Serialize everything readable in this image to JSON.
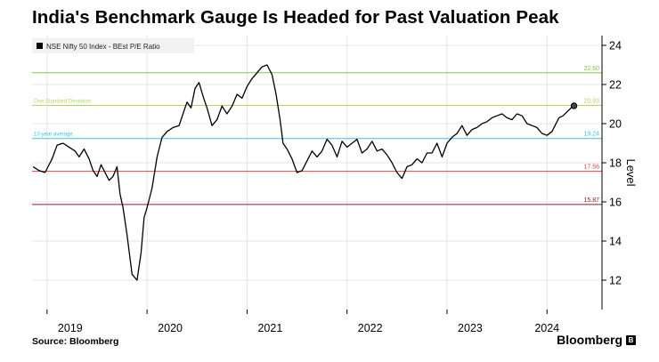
{
  "title": "India's Benchmark Gauge Is Headed for Past Valuation Peak",
  "source": "Source: Bloomberg",
  "brand": "Bloomberg",
  "chart_data": {
    "type": "line",
    "ylabel": "Level",
    "ylim": [
      10.5,
      24.5
    ],
    "yticks": [
      12,
      14,
      16,
      18,
      20,
      22,
      24
    ],
    "xlim": [
      2018.85,
      2024.55
    ],
    "xticks": [
      {
        "label": "2019",
        "x": 2019.0
      },
      {
        "label": "2020",
        "x": 2020.0
      },
      {
        "label": "2021",
        "x": 2021.0
      },
      {
        "label": "2022",
        "x": 2022.0
      },
      {
        "label": "2023",
        "x": 2023.0
      },
      {
        "label": "2024",
        "x": 2024.0
      }
    ],
    "grid": true,
    "legend": {
      "position": "top-left"
    },
    "series": [
      {
        "name": "NSE Nifty 50 Index - BEst P/E Ratio",
        "color": "#000000",
        "x": [
          2018.86,
          2018.92,
          2018.98,
          2019.05,
          2019.1,
          2019.16,
          2019.22,
          2019.28,
          2019.32,
          2019.37,
          2019.42,
          2019.46,
          2019.5,
          2019.54,
          2019.58,
          2019.62,
          2019.66,
          2019.7,
          2019.73,
          2019.76,
          2019.8,
          2019.85,
          2019.9,
          2019.94,
          2019.97,
          2020.0,
          2020.05,
          2020.1,
          2020.15,
          2020.2,
          2020.26,
          2020.32,
          2020.36,
          2020.4,
          2020.44,
          2020.48,
          2020.52,
          2020.56,
          2020.6,
          2020.65,
          2020.7,
          2020.75,
          2020.8,
          2020.85,
          2020.9,
          2020.95,
          2021.0,
          2021.05,
          2021.1,
          2021.15,
          2021.2,
          2021.25,
          2021.29,
          2021.33,
          2021.36,
          2021.4,
          2021.45,
          2021.5,
          2021.55,
          2021.6,
          2021.65,
          2021.7,
          2021.75,
          2021.8,
          2021.85,
          2021.9,
          2021.95,
          2022.0,
          2022.05,
          2022.1,
          2022.15,
          2022.2,
          2022.25,
          2022.3,
          2022.35,
          2022.4,
          2022.45,
          2022.5,
          2022.55,
          2022.6,
          2022.65,
          2022.7,
          2022.75,
          2022.8,
          2022.85,
          2022.9,
          2022.95,
          2023.0,
          2023.05,
          2023.1,
          2023.15,
          2023.2,
          2023.25,
          2023.3,
          2023.35,
          2023.4,
          2023.45,
          2023.5,
          2023.55,
          2023.6,
          2023.65,
          2023.7,
          2023.75,
          2023.8,
          2023.85,
          2023.9,
          2023.95,
          2024.0,
          2024.05,
          2024.08,
          2024.12,
          2024.16,
          2024.2,
          2024.24,
          2024.27
        ],
        "values": [
          17.8,
          17.6,
          17.5,
          18.2,
          18.9,
          19.0,
          18.8,
          18.6,
          18.3,
          18.7,
          18.2,
          17.6,
          17.3,
          17.9,
          17.5,
          17.1,
          17.3,
          17.8,
          16.4,
          15.7,
          14.3,
          12.3,
          12.0,
          13.4,
          15.2,
          15.7,
          16.7,
          18.3,
          19.3,
          19.6,
          19.8,
          19.9,
          20.5,
          21.1,
          20.8,
          21.8,
          22.1,
          21.4,
          20.8,
          19.9,
          20.2,
          20.9,
          20.5,
          20.9,
          21.5,
          21.3,
          21.9,
          22.3,
          22.6,
          22.9,
          23.0,
          22.5,
          21.5,
          20.2,
          19.0,
          18.7,
          18.2,
          17.5,
          17.6,
          18.1,
          18.6,
          18.3,
          18.6,
          19.2,
          18.9,
          18.3,
          19.1,
          18.8,
          19.0,
          19.2,
          18.5,
          18.7,
          19.1,
          18.6,
          18.7,
          18.4,
          18.0,
          17.5,
          17.2,
          17.8,
          17.9,
          18.2,
          18.0,
          18.5,
          18.5,
          19.0,
          18.3,
          19.0,
          19.3,
          19.5,
          19.9,
          19.4,
          19.7,
          19.8,
          20.0,
          20.1,
          20.3,
          20.4,
          20.5,
          20.3,
          20.2,
          20.5,
          20.4,
          20.0,
          19.9,
          19.8,
          19.5,
          19.4,
          19.6,
          19.9,
          20.3,
          20.4,
          20.6,
          20.8,
          20.91
        ]
      }
    ],
    "reference_lines": [
      {
        "label": "22.60",
        "value": 22.6,
        "color": "#7fc843"
      },
      {
        "label": "One Standard Deviation",
        "value_label": "20.93",
        "value": 20.93,
        "color": "#b4d65c"
      },
      {
        "label": "10-year average",
        "value_label": "19.24",
        "value": 19.24,
        "color": "#3ec1d8"
      },
      {
        "label": "17.56",
        "value": 17.56,
        "color": "#e0434b"
      },
      {
        "label": "15.87",
        "value": 15.87,
        "color": "#8e1d2a"
      }
    ],
    "end_marker": {
      "x": 2024.27,
      "y": 20.91
    }
  }
}
